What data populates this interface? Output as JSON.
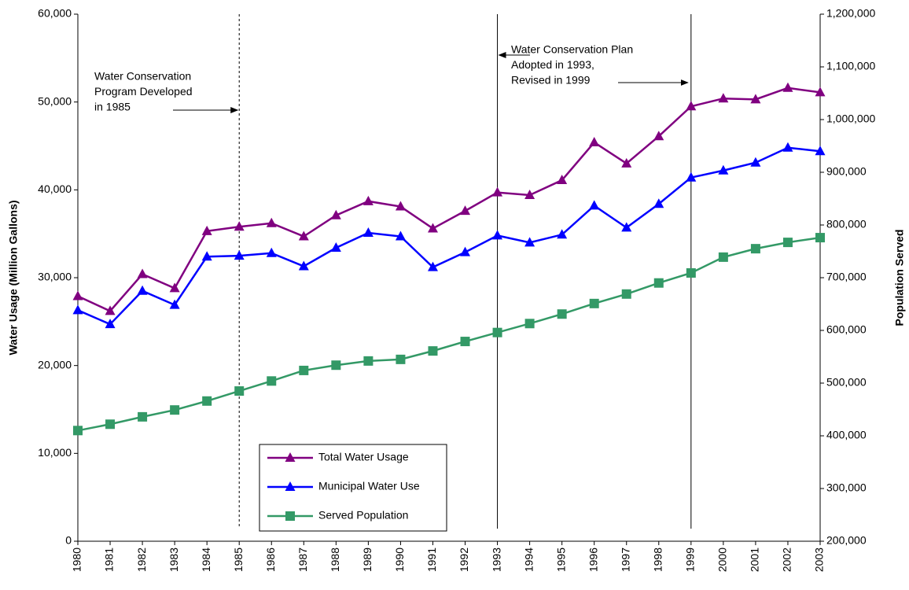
{
  "chart_data": {
    "type": "line",
    "y_label": "Water Usage (Million Gallons)",
    "y2_label": "Population Served",
    "categories": [
      "1980",
      "1981",
      "1982",
      "1983",
      "1984",
      "1985",
      "1986",
      "1987",
      "1988",
      "1989",
      "1990",
      "1991",
      "1992",
      "1993",
      "1994",
      "1995",
      "1996",
      "1997",
      "1998",
      "1999",
      "2000",
      "2001",
      "2002",
      "2003"
    ],
    "series": [
      {
        "name": "Total Water Usage",
        "color": "#800080",
        "marker": "triangle",
        "values": [
          27900,
          26200,
          30400,
          28800,
          35300,
          35800,
          36200,
          34700,
          37100,
          38700,
          38100,
          35600,
          37600,
          39700,
          39400,
          41100,
          45400,
          43000,
          46100,
          49500,
          50400,
          50300,
          51600,
          51100
        ]
      },
      {
        "name": "Municipal Water Use",
        "color": "#0000ff",
        "marker": "triangle",
        "values": [
          26300,
          24700,
          28500,
          26900,
          32400,
          32500,
          32800,
          31300,
          33400,
          35100,
          34700,
          31200,
          32900,
          34800,
          34000,
          34900,
          38200,
          35700,
          38400,
          41400,
          42200,
          43100,
          44800,
          44400
        ]
      },
      {
        "name": "Served Population",
        "color": "#339966",
        "marker": "square",
        "axis": "y2",
        "values": [
          410000,
          422000,
          436000,
          449000,
          466000,
          485000,
          504000,
          524000,
          534000,
          542000,
          545000,
          561000,
          579000,
          596000,
          613000,
          631000,
          651000,
          669000,
          690000,
          709000,
          739000,
          755000,
          767000,
          776000
        ]
      }
    ],
    "ylim": [
      0,
      60000
    ],
    "yticks": [
      0,
      {
        "value": 10000,
        "label": "10,000"
      },
      {
        "value": 20000,
        "label": "20,000"
      },
      {
        "value": 30000,
        "label": "30,000"
      },
      {
        "value": 40000,
        "label": "40,000"
      },
      {
        "value": 50000,
        "label": "50,000"
      },
      {
        "value": 60000,
        "label": "60,000"
      }
    ],
    "y2lim": [
      200000,
      1200000
    ],
    "y2ticks": [
      {
        "value": 200000,
        "label": "200,000"
      },
      {
        "value": 300000,
        "label": "300,000"
      },
      {
        "value": 400000,
        "label": "400,000"
      },
      {
        "value": 500000,
        "label": "500,000"
      },
      {
        "value": 600000,
        "label": "600,000"
      },
      {
        "value": 700000,
        "label": "700,000"
      },
      {
        "value": 800000,
        "label": "800,000"
      },
      {
        "value": 900000,
        "label": "900,000"
      },
      {
        "value": 1000000,
        "label": "1,000,000"
      },
      {
        "value": 1100000,
        "label": "1,100,000"
      },
      {
        "value": 1200000,
        "label": "1,200,000"
      }
    ],
    "reference_lines": [
      {
        "x": "1985",
        "style": "dashed"
      },
      {
        "x": "1993",
        "style": "solid"
      },
      {
        "x": "1999",
        "style": "solid"
      }
    ],
    "annotations": [
      {
        "lines": [
          "Water Conservation",
          "Program Developed",
          "in 1985"
        ]
      },
      {
        "lines": [
          "Water Conservation Plan",
          "Adopted in 1993,",
          "Revised in 1999"
        ]
      }
    ],
    "legend": "inside-bottom-center"
  }
}
